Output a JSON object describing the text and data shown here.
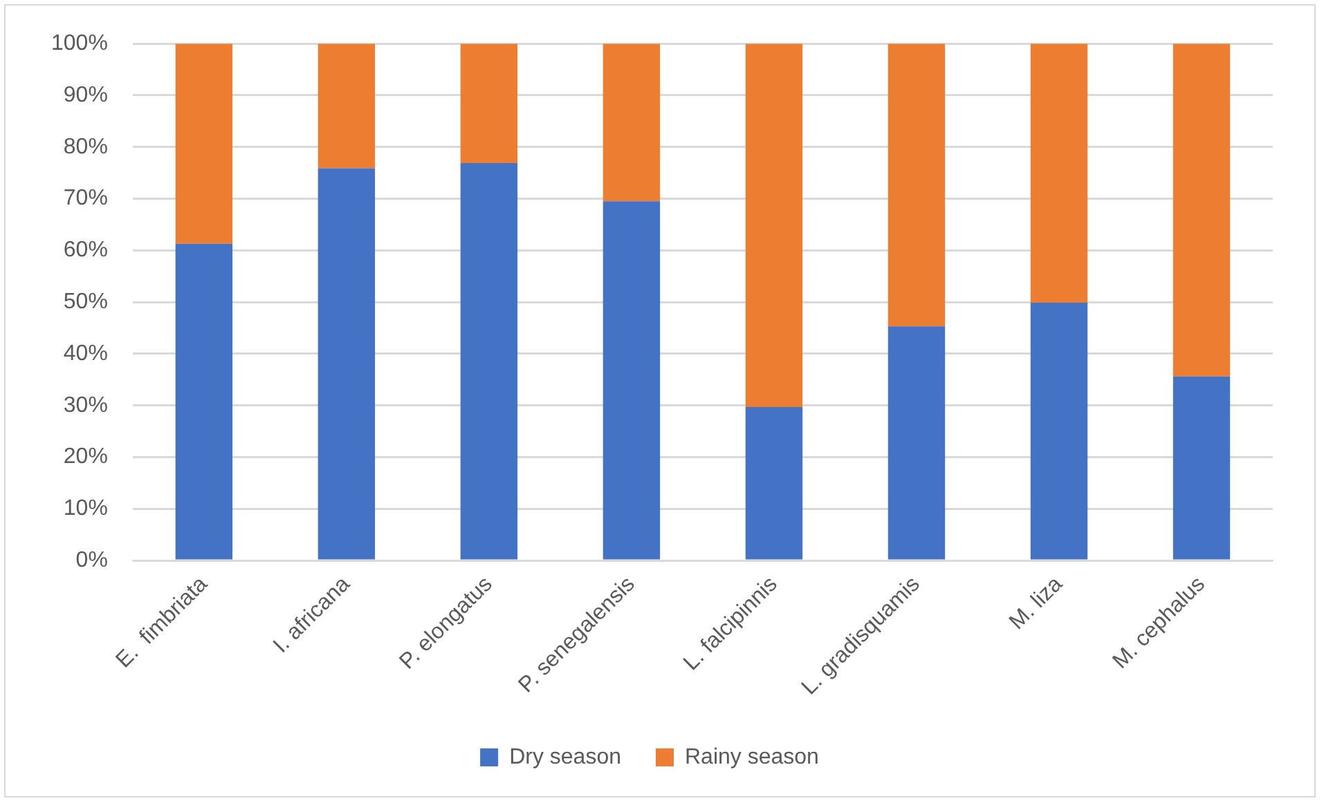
{
  "chart_data": {
    "type": "bar",
    "stacked": true,
    "categories": [
      "E.  fimbriata",
      "I. africana",
      "P. elongatus",
      "P. senegalensis",
      "L. falcipinnis",
      "L. gradisquamis",
      "M. liza",
      "M. cephalus"
    ],
    "series": [
      {
        "name": "Dry season",
        "color": "#4472c4",
        "values": [
          61.3,
          75.9,
          76.9,
          69.5,
          29.7,
          45.3,
          49.9,
          35.6
        ]
      },
      {
        "name": "Rainy season",
        "color": "#ed7d31",
        "values": [
          38.7,
          24.1,
          23.1,
          30.5,
          70.3,
          54.7,
          50.1,
          64.4
        ]
      }
    ],
    "ylim": [
      0,
      100
    ],
    "yticks": [
      {
        "value": 0,
        "label": "0%"
      },
      {
        "value": 10,
        "label": "10%"
      },
      {
        "value": 20,
        "label": "20%"
      },
      {
        "value": 30,
        "label": "30%"
      },
      {
        "value": 40,
        "label": "40%"
      },
      {
        "value": 50,
        "label": "50%"
      },
      {
        "value": 60,
        "label": "60%"
      },
      {
        "value": 70,
        "label": "70%"
      },
      {
        "value": 80,
        "label": "80%"
      },
      {
        "value": 90,
        "label": "90%"
      },
      {
        "value": 100,
        "label": "100%"
      }
    ],
    "grid": "y",
    "legend": "bottom"
  }
}
